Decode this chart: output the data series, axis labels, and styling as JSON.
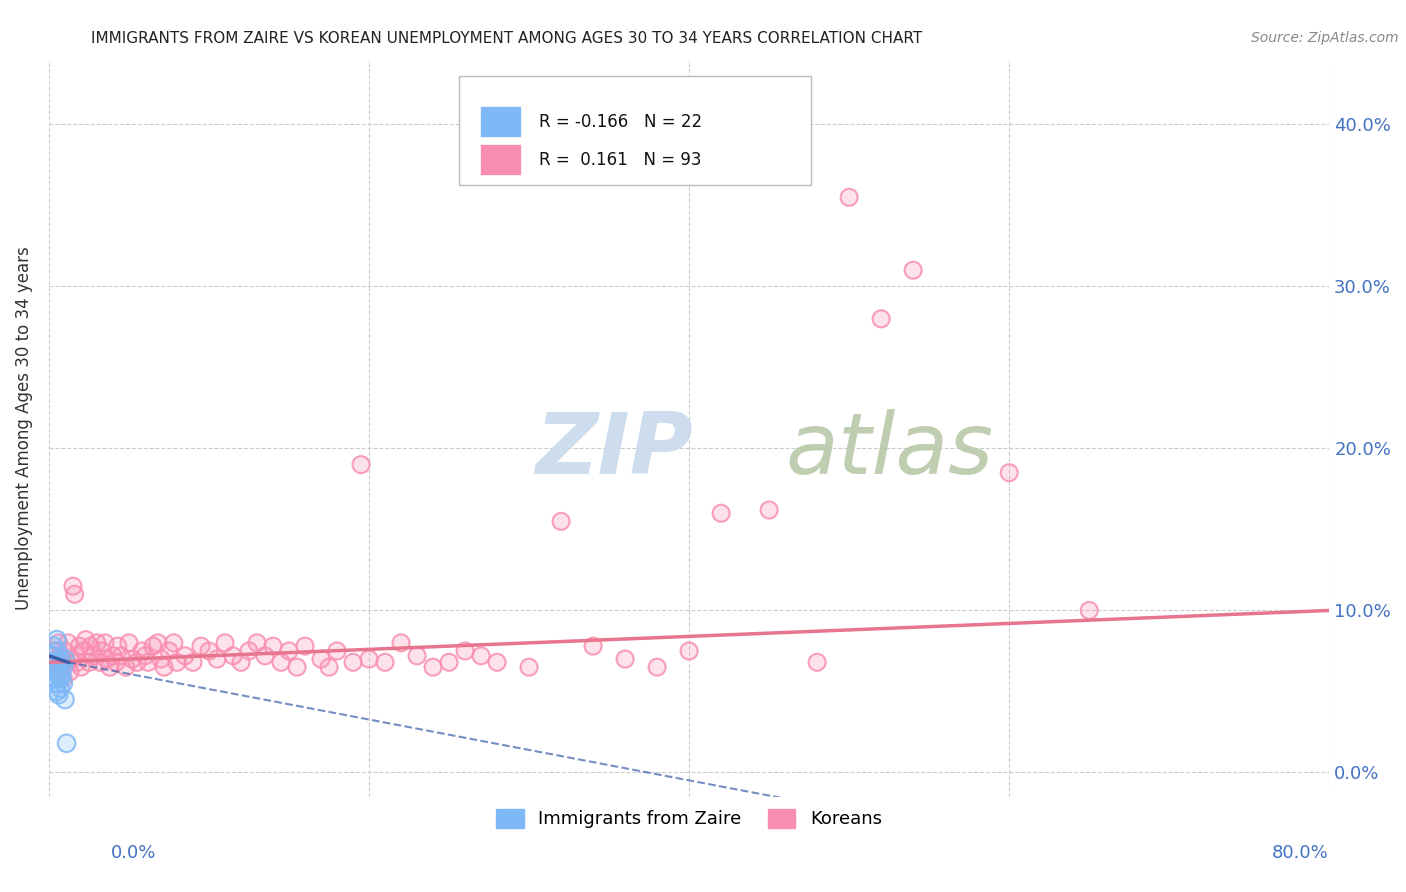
{
  "title": "IMMIGRANTS FROM ZAIRE VS KOREAN UNEMPLOYMENT AMONG AGES 30 TO 34 YEARS CORRELATION CHART",
  "source": "Source: ZipAtlas.com",
  "ylabel": "Unemployment Among Ages 30 to 34 years",
  "ytick_labels": [
    "0.0%",
    "10.0%",
    "20.0%",
    "30.0%",
    "40.0%"
  ],
  "ytick_values": [
    0.0,
    0.1,
    0.2,
    0.3,
    0.4
  ],
  "xlim": [
    0.0,
    0.8
  ],
  "ylim": [
    -0.015,
    0.44
  ],
  "zaire_color": "#7eb8f7",
  "korean_color": "#f98eb0",
  "zaire_line_color": "#3a5fa8",
  "korean_line_color": "#e8758f",
  "watermark_zip": "ZIP",
  "watermark_atlas": "atlas",
  "watermark_color_zip": "#c5d8ee",
  "watermark_color_atlas": "#b8c8a8",
  "background_color": "#ffffff",
  "grid_color": "#cccccc",
  "title_color": "#222222",
  "axis_label_color": "#4472c4",
  "zaire_points": [
    [
      0.002,
      0.072
    ],
    [
      0.003,
      0.078
    ],
    [
      0.004,
      0.068
    ],
    [
      0.004,
      0.058
    ],
    [
      0.005,
      0.082
    ],
    [
      0.005,
      0.075
    ],
    [
      0.005,
      0.062
    ],
    [
      0.005,
      0.055
    ],
    [
      0.005,
      0.05
    ],
    [
      0.006,
      0.065
    ],
    [
      0.006,
      0.06
    ],
    [
      0.006,
      0.048
    ],
    [
      0.007,
      0.07
    ],
    [
      0.007,
      0.058
    ],
    [
      0.007,
      0.052
    ],
    [
      0.008,
      0.068
    ],
    [
      0.008,
      0.06
    ],
    [
      0.009,
      0.065
    ],
    [
      0.009,
      0.055
    ],
    [
      0.01,
      0.07
    ],
    [
      0.01,
      0.045
    ],
    [
      0.011,
      0.018
    ]
  ],
  "korean_points": [
    [
      0.002,
      0.068
    ],
    [
      0.003,
      0.075
    ],
    [
      0.004,
      0.062
    ],
    [
      0.005,
      0.07
    ],
    [
      0.006,
      0.08
    ],
    [
      0.007,
      0.065
    ],
    [
      0.008,
      0.072
    ],
    [
      0.009,
      0.058
    ],
    [
      0.01,
      0.075
    ],
    [
      0.011,
      0.068
    ],
    [
      0.012,
      0.08
    ],
    [
      0.013,
      0.062
    ],
    [
      0.014,
      0.07
    ],
    [
      0.015,
      0.115
    ],
    [
      0.016,
      0.11
    ],
    [
      0.017,
      0.072
    ],
    [
      0.018,
      0.068
    ],
    [
      0.019,
      0.078
    ],
    [
      0.02,
      0.065
    ],
    [
      0.022,
      0.075
    ],
    [
      0.023,
      0.082
    ],
    [
      0.025,
      0.068
    ],
    [
      0.026,
      0.078
    ],
    [
      0.028,
      0.072
    ],
    [
      0.03,
      0.08
    ],
    [
      0.032,
      0.068
    ],
    [
      0.033,
      0.075
    ],
    [
      0.035,
      0.08
    ],
    [
      0.036,
      0.07
    ],
    [
      0.038,
      0.065
    ],
    [
      0.04,
      0.072
    ],
    [
      0.042,
      0.068
    ],
    [
      0.043,
      0.078
    ],
    [
      0.045,
      0.072
    ],
    [
      0.048,
      0.065
    ],
    [
      0.05,
      0.08
    ],
    [
      0.052,
      0.07
    ],
    [
      0.055,
      0.068
    ],
    [
      0.058,
      0.075
    ],
    [
      0.06,
      0.072
    ],
    [
      0.062,
      0.068
    ],
    [
      0.065,
      0.078
    ],
    [
      0.068,
      0.08
    ],
    [
      0.07,
      0.07
    ],
    [
      0.072,
      0.065
    ],
    [
      0.075,
      0.075
    ],
    [
      0.078,
      0.08
    ],
    [
      0.08,
      0.068
    ],
    [
      0.085,
      0.072
    ],
    [
      0.09,
      0.068
    ],
    [
      0.095,
      0.078
    ],
    [
      0.1,
      0.075
    ],
    [
      0.105,
      0.07
    ],
    [
      0.11,
      0.08
    ],
    [
      0.115,
      0.072
    ],
    [
      0.12,
      0.068
    ],
    [
      0.125,
      0.075
    ],
    [
      0.13,
      0.08
    ],
    [
      0.135,
      0.072
    ],
    [
      0.14,
      0.078
    ],
    [
      0.145,
      0.068
    ],
    [
      0.15,
      0.075
    ],
    [
      0.155,
      0.065
    ],
    [
      0.16,
      0.078
    ],
    [
      0.17,
      0.07
    ],
    [
      0.175,
      0.065
    ],
    [
      0.18,
      0.075
    ],
    [
      0.19,
      0.068
    ],
    [
      0.195,
      0.19
    ],
    [
      0.2,
      0.07
    ],
    [
      0.21,
      0.068
    ],
    [
      0.22,
      0.08
    ],
    [
      0.23,
      0.072
    ],
    [
      0.24,
      0.065
    ],
    [
      0.25,
      0.068
    ],
    [
      0.26,
      0.075
    ],
    [
      0.27,
      0.072
    ],
    [
      0.28,
      0.068
    ],
    [
      0.3,
      0.065
    ],
    [
      0.32,
      0.155
    ],
    [
      0.34,
      0.078
    ],
    [
      0.36,
      0.07
    ],
    [
      0.38,
      0.065
    ],
    [
      0.4,
      0.075
    ],
    [
      0.42,
      0.16
    ],
    [
      0.45,
      0.162
    ],
    [
      0.48,
      0.068
    ],
    [
      0.5,
      0.355
    ],
    [
      0.52,
      0.28
    ],
    [
      0.54,
      0.31
    ],
    [
      0.6,
      0.185
    ],
    [
      0.65,
      0.1
    ]
  ],
  "korean_trend": [
    0.0,
    0.8,
    0.068,
    0.1
  ],
  "zaire_trend_solid": [
    0.0,
    0.012,
    0.072,
    0.068
  ],
  "zaire_trend_dash": [
    0.012,
    0.8,
    0.068,
    -0.08
  ]
}
